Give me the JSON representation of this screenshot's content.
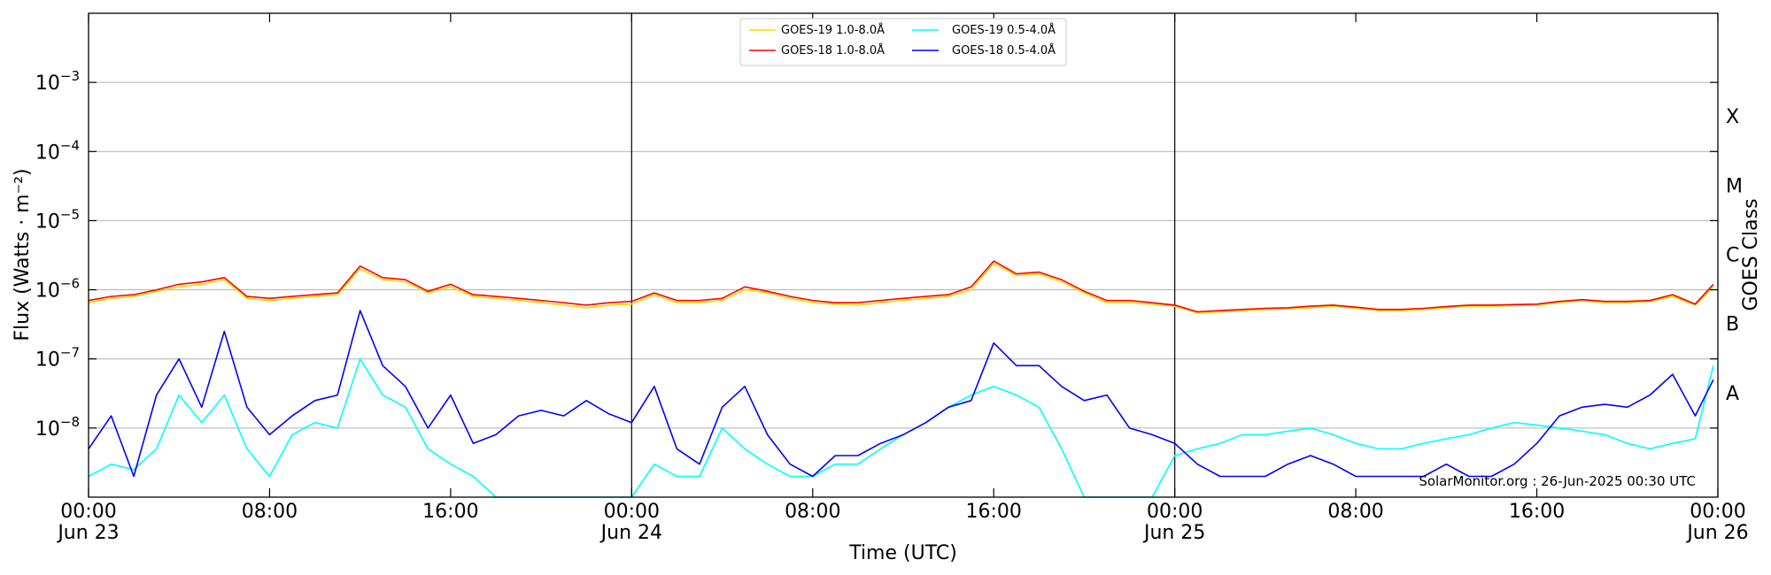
{
  "chart_data": {
    "type": "line",
    "x_range": [
      "2025-06-23T00:00",
      "2025-06-26T00:00"
    ],
    "y_scale": "log",
    "ylim": [
      1e-09,
      0.01
    ],
    "xlabel": "Time (UTC)",
    "ylabel": "Flux (Watts · m⁻²)",
    "ylabel_right": "GOES Class",
    "grid": "horizontal",
    "legend": "top-center",
    "x_ticks": [
      {
        "label": "00:00",
        "sub": "Jun 23",
        "hour": 0
      },
      {
        "label": "08:00",
        "sub": "",
        "hour": 8
      },
      {
        "label": "16:00",
        "sub": "",
        "hour": 16
      },
      {
        "label": "00:00",
        "sub": "Jun 24",
        "hour": 24
      },
      {
        "label": "08:00",
        "sub": "",
        "hour": 32
      },
      {
        "label": "16:00",
        "sub": "",
        "hour": 40
      },
      {
        "label": "00:00",
        "sub": "Jun 25",
        "hour": 48
      },
      {
        "label": "08:00",
        "sub": "",
        "hour": 56
      },
      {
        "label": "16:00",
        "sub": "",
        "hour": 64
      },
      {
        "label": "00:00",
        "sub": "Jun 26",
        "hour": 72
      }
    ],
    "y_ticks": [
      {
        "base": "10",
        "exp": "−8",
        "value": -8
      },
      {
        "base": "10",
        "exp": "−7",
        "value": -7
      },
      {
        "base": "10",
        "exp": "−6",
        "value": -6
      },
      {
        "base": "10",
        "exp": "−5",
        "value": -5
      },
      {
        "base": "10",
        "exp": "−4",
        "value": -4
      },
      {
        "base": "10",
        "exp": "−3",
        "value": -3
      }
    ],
    "goes_classes": [
      {
        "label": "A",
        "value": -7.5
      },
      {
        "label": "B",
        "value": -6.5
      },
      {
        "label": "C",
        "value": -5.5
      },
      {
        "label": "M",
        "value": -4.5
      },
      {
        "label": "X",
        "value": -3.5
      }
    ],
    "day_boundaries": [
      24,
      48
    ],
    "annotation": "SolarMonitor.org : 26-Jun-2025 00:30 UTC",
    "series": [
      {
        "name": "GOES-19 1.0-8.0Å",
        "color": "#ffd700",
        "x": [
          0,
          1,
          2,
          3,
          4,
          5,
          6,
          7,
          8,
          9,
          10,
          11,
          12,
          13,
          14,
          15,
          16,
          17,
          18,
          19,
          20,
          21,
          22,
          23,
          24,
          25,
          26,
          27,
          28,
          29,
          30,
          31,
          32,
          33,
          34,
          35,
          36,
          37,
          38,
          39,
          40,
          41,
          42,
          43,
          44,
          45,
          46,
          47,
          48,
          49,
          50,
          51,
          52,
          53,
          54,
          55,
          56,
          57,
          58,
          59,
          60,
          61,
          62,
          63,
          64,
          65,
          66,
          67,
          68,
          69,
          70,
          71,
          71.8
        ],
        "y": [
          6.5e-07,
          7.5e-07,
          8e-07,
          9.5e-07,
          1.1e-06,
          1.2e-06,
          1.4e-06,
          7.5e-07,
          7e-07,
          7.5e-07,
          8e-07,
          8.5e-07,
          2e-06,
          1.4e-06,
          1.3e-06,
          9e-07,
          1.1e-06,
          8e-07,
          7.5e-07,
          7e-07,
          6.5e-07,
          6e-07,
          5.5e-07,
          6e-07,
          6.2e-07,
          8.5e-07,
          6.5e-07,
          6.5e-07,
          7e-07,
          1e-06,
          9e-07,
          7.5e-07,
          6.5e-07,
          6.2e-07,
          6e-07,
          6.5e-07,
          7e-07,
          7.5e-07,
          8e-07,
          1e-06,
          2.4e-06,
          1.6e-06,
          1.7e-06,
          1.3e-06,
          9e-07,
          6.5e-07,
          6.5e-07,
          6.2e-07,
          5.8e-07,
          4.6e-07,
          4.8e-07,
          5e-07,
          5.2e-07,
          5.3e-07,
          5.5e-07,
          5.8e-07,
          5.4e-07,
          5e-07,
          5e-07,
          5.2e-07,
          5.5e-07,
          5.8e-07,
          5.8e-07,
          5.9e-07,
          6e-07,
          6.5e-07,
          7e-07,
          6.5e-07,
          6.5e-07,
          6.8e-07,
          8e-07,
          6e-07,
          1.1e-06
        ]
      },
      {
        "name": "GOES-18 1.0-8.0Å",
        "color": "#ff0000",
        "x": [
          0,
          1,
          2,
          3,
          4,
          5,
          6,
          7,
          8,
          9,
          10,
          11,
          12,
          13,
          14,
          15,
          16,
          17,
          18,
          19,
          20,
          21,
          22,
          23,
          24,
          25,
          26,
          27,
          28,
          29,
          30,
          31,
          32,
          33,
          34,
          35,
          36,
          37,
          38,
          39,
          40,
          41,
          42,
          43,
          44,
          45,
          46,
          47,
          48,
          49,
          50,
          51,
          52,
          53,
          54,
          55,
          56,
          57,
          58,
          59,
          60,
          61,
          62,
          63,
          64,
          65,
          66,
          67,
          68,
          69,
          70,
          71,
          71.8
        ],
        "y": [
          7e-07,
          8e-07,
          8.5e-07,
          1e-06,
          1.2e-06,
          1.3e-06,
          1.5e-06,
          8e-07,
          7.5e-07,
          8e-07,
          8.5e-07,
          9e-07,
          2.2e-06,
          1.5e-06,
          1.4e-06,
          9.5e-07,
          1.2e-06,
          8.5e-07,
          8e-07,
          7.5e-07,
          7e-07,
          6.5e-07,
          6e-07,
          6.5e-07,
          6.8e-07,
          9e-07,
          7e-07,
          7e-07,
          7.5e-07,
          1.1e-06,
          9.5e-07,
          8e-07,
          7e-07,
          6.5e-07,
          6.5e-07,
          7e-07,
          7.5e-07,
          8e-07,
          8.5e-07,
          1.1e-06,
          2.6e-06,
          1.7e-06,
          1.8e-06,
          1.4e-06,
          9.5e-07,
          7e-07,
          7e-07,
          6.5e-07,
          6e-07,
          4.8e-07,
          5e-07,
          5.2e-07,
          5.4e-07,
          5.5e-07,
          5.8e-07,
          6e-07,
          5.6e-07,
          5.2e-07,
          5.2e-07,
          5.4e-07,
          5.7e-07,
          6e-07,
          6e-07,
          6.1e-07,
          6.2e-07,
          6.8e-07,
          7.2e-07,
          6.8e-07,
          6.8e-07,
          7e-07,
          8.5e-07,
          6.2e-07,
          1.2e-06
        ]
      },
      {
        "name": "GOES-19 0.5-4.0Å",
        "color": "#00ffff",
        "x": [
          0,
          1,
          2,
          3,
          4,
          5,
          6,
          7,
          8,
          9,
          10,
          11,
          12,
          13,
          14,
          15,
          16,
          17,
          18,
          19,
          20,
          21,
          22,
          23,
          24,
          25,
          26,
          27,
          28,
          29,
          30,
          31,
          32,
          33,
          34,
          35,
          36,
          37,
          38,
          39,
          40,
          41,
          42,
          43,
          44,
          45,
          46,
          47,
          48,
          49,
          50,
          51,
          52,
          53,
          54,
          55,
          56,
          57,
          58,
          59,
          60,
          61,
          62,
          63,
          64,
          65,
          66,
          67,
          68,
          69,
          70,
          71,
          71.8
        ],
        "y": [
          2e-09,
          3e-09,
          2.5e-09,
          5e-09,
          3e-08,
          1.2e-08,
          3e-08,
          5e-09,
          2e-09,
          8e-09,
          1.2e-08,
          1e-08,
          1e-07,
          3e-08,
          2e-08,
          5e-09,
          3e-09,
          2e-09,
          1e-09,
          1e-09,
          1e-09,
          1e-09,
          1e-09,
          1e-09,
          1e-09,
          3e-09,
          2e-09,
          2e-09,
          1e-08,
          5e-09,
          3e-09,
          2e-09,
          2e-09,
          3e-09,
          3e-09,
          5e-09,
          8e-09,
          1.2e-08,
          2e-08,
          3e-08,
          4e-08,
          3e-08,
          2e-08,
          5e-09,
          1e-09,
          1e-09,
          1e-09,
          1e-09,
          4e-09,
          5e-09,
          6e-09,
          8e-09,
          8e-09,
          9e-09,
          1e-08,
          8e-09,
          6e-09,
          5e-09,
          5e-09,
          6e-09,
          7e-09,
          8e-09,
          1e-08,
          1.2e-08,
          1.1e-08,
          1e-08,
          9e-09,
          8e-09,
          6e-09,
          5e-09,
          6e-09,
          7e-09,
          8e-08
        ]
      },
      {
        "name": "GOES-18 0.5-4.0Å",
        "color": "#0000ff",
        "x": [
          0,
          1,
          2,
          3,
          4,
          5,
          6,
          7,
          8,
          9,
          10,
          11,
          12,
          13,
          14,
          15,
          16,
          17,
          18,
          19,
          20,
          21,
          22,
          23,
          24,
          25,
          26,
          27,
          28,
          29,
          30,
          31,
          32,
          33,
          34,
          35,
          36,
          37,
          38,
          39,
          40,
          41,
          42,
          43,
          44,
          45,
          46,
          47,
          48,
          49,
          50,
          51,
          52,
          53,
          54,
          55,
          56,
          57,
          58,
          59,
          60,
          61,
          62,
          63,
          64,
          65,
          66,
          67,
          68,
          69,
          70,
          71,
          71.8
        ],
        "y": [
          5e-09,
          1.5e-08,
          2e-09,
          3e-08,
          1e-07,
          2e-08,
          2.5e-07,
          2e-08,
          8e-09,
          1.5e-08,
          2.5e-08,
          3e-08,
          5e-07,
          8e-08,
          4e-08,
          1e-08,
          3e-08,
          6e-09,
          8e-09,
          1.5e-08,
          1.8e-08,
          1.5e-08,
          2.5e-08,
          1.6e-08,
          1.2e-08,
          4e-08,
          5e-09,
          3e-09,
          2e-08,
          4e-08,
          8e-09,
          3e-09,
          2e-09,
          4e-09,
          4e-09,
          6e-09,
          8e-09,
          1.2e-08,
          2e-08,
          2.5e-08,
          1.7e-07,
          8e-08,
          8e-08,
          4e-08,
          2.5e-08,
          3e-08,
          1e-08,
          8e-09,
          6e-09,
          3e-09,
          2e-09,
          2e-09,
          2e-09,
          3e-09,
          4e-09,
          3e-09,
          2e-09,
          2e-09,
          2e-09,
          2e-09,
          3e-09,
          2e-09,
          2e-09,
          3e-09,
          6e-09,
          1.5e-08,
          2e-08,
          2.2e-08,
          2e-08,
          3e-08,
          6e-08,
          1.5e-08,
          5e-08
        ]
      }
    ]
  }
}
